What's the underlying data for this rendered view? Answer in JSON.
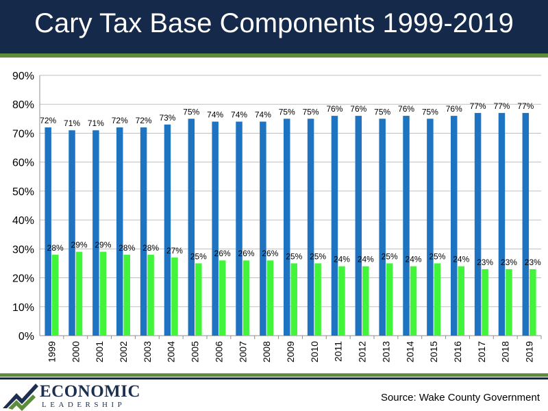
{
  "header": {
    "title": "Cary Tax Base Components 1999-2019"
  },
  "footer": {
    "logo_word": "ECONOMIC",
    "logo_sub": "LEADERSHIP",
    "source": "Source: Wake County Government"
  },
  "colors": {
    "title_bar": "#15294a",
    "accent_green": "#5d8c3a",
    "series_1": "#1f74c2",
    "series_2": "#43f53a"
  },
  "chart_data": {
    "type": "bar",
    "categories": [
      "1999",
      "2000",
      "2001",
      "2002",
      "2003",
      "2004",
      "2005",
      "2006",
      "2007",
      "2008",
      "2009",
      "2010",
      "2011",
      "2012",
      "2013",
      "2014",
      "2015",
      "2016",
      "2017",
      "2018",
      "2019"
    ],
    "series": [
      {
        "values": [
          72,
          71,
          71,
          72,
          72,
          73,
          75,
          74,
          74,
          74,
          75,
          75,
          76,
          76,
          75,
          76,
          75,
          76,
          77,
          77,
          77
        ],
        "labels": [
          "72%",
          "71%",
          "71%",
          "72%",
          "72%",
          "73%",
          "75%",
          "74%",
          "74%",
          "74%",
          "75%",
          "75%",
          "76%",
          "76%",
          "75%",
          "76%",
          "75%",
          "76%",
          "77%",
          "77%",
          "77%"
        ]
      },
      {
        "values": [
          28,
          29,
          29,
          28,
          28,
          27,
          25,
          26,
          26,
          26,
          25,
          25,
          24,
          24,
          25,
          24,
          25,
          24,
          23,
          23,
          23
        ],
        "labels": [
          "28%",
          "29%",
          "29%",
          "28%",
          "28%",
          "27%",
          "25%",
          "26%",
          "26%",
          "26%",
          "25%",
          "25%",
          "24%",
          "24%",
          "25%",
          "24%",
          "25%",
          "24%",
          "23%",
          "23%",
          "23%"
        ]
      }
    ],
    "y_ticks": [
      "0%",
      "10%",
      "20%",
      "30%",
      "40%",
      "50%",
      "60%",
      "70%",
      "80%",
      "90%"
    ],
    "ylim": [
      0,
      90
    ],
    "x_tick_rotation": "vertical",
    "grid": true,
    "legend": "none"
  }
}
